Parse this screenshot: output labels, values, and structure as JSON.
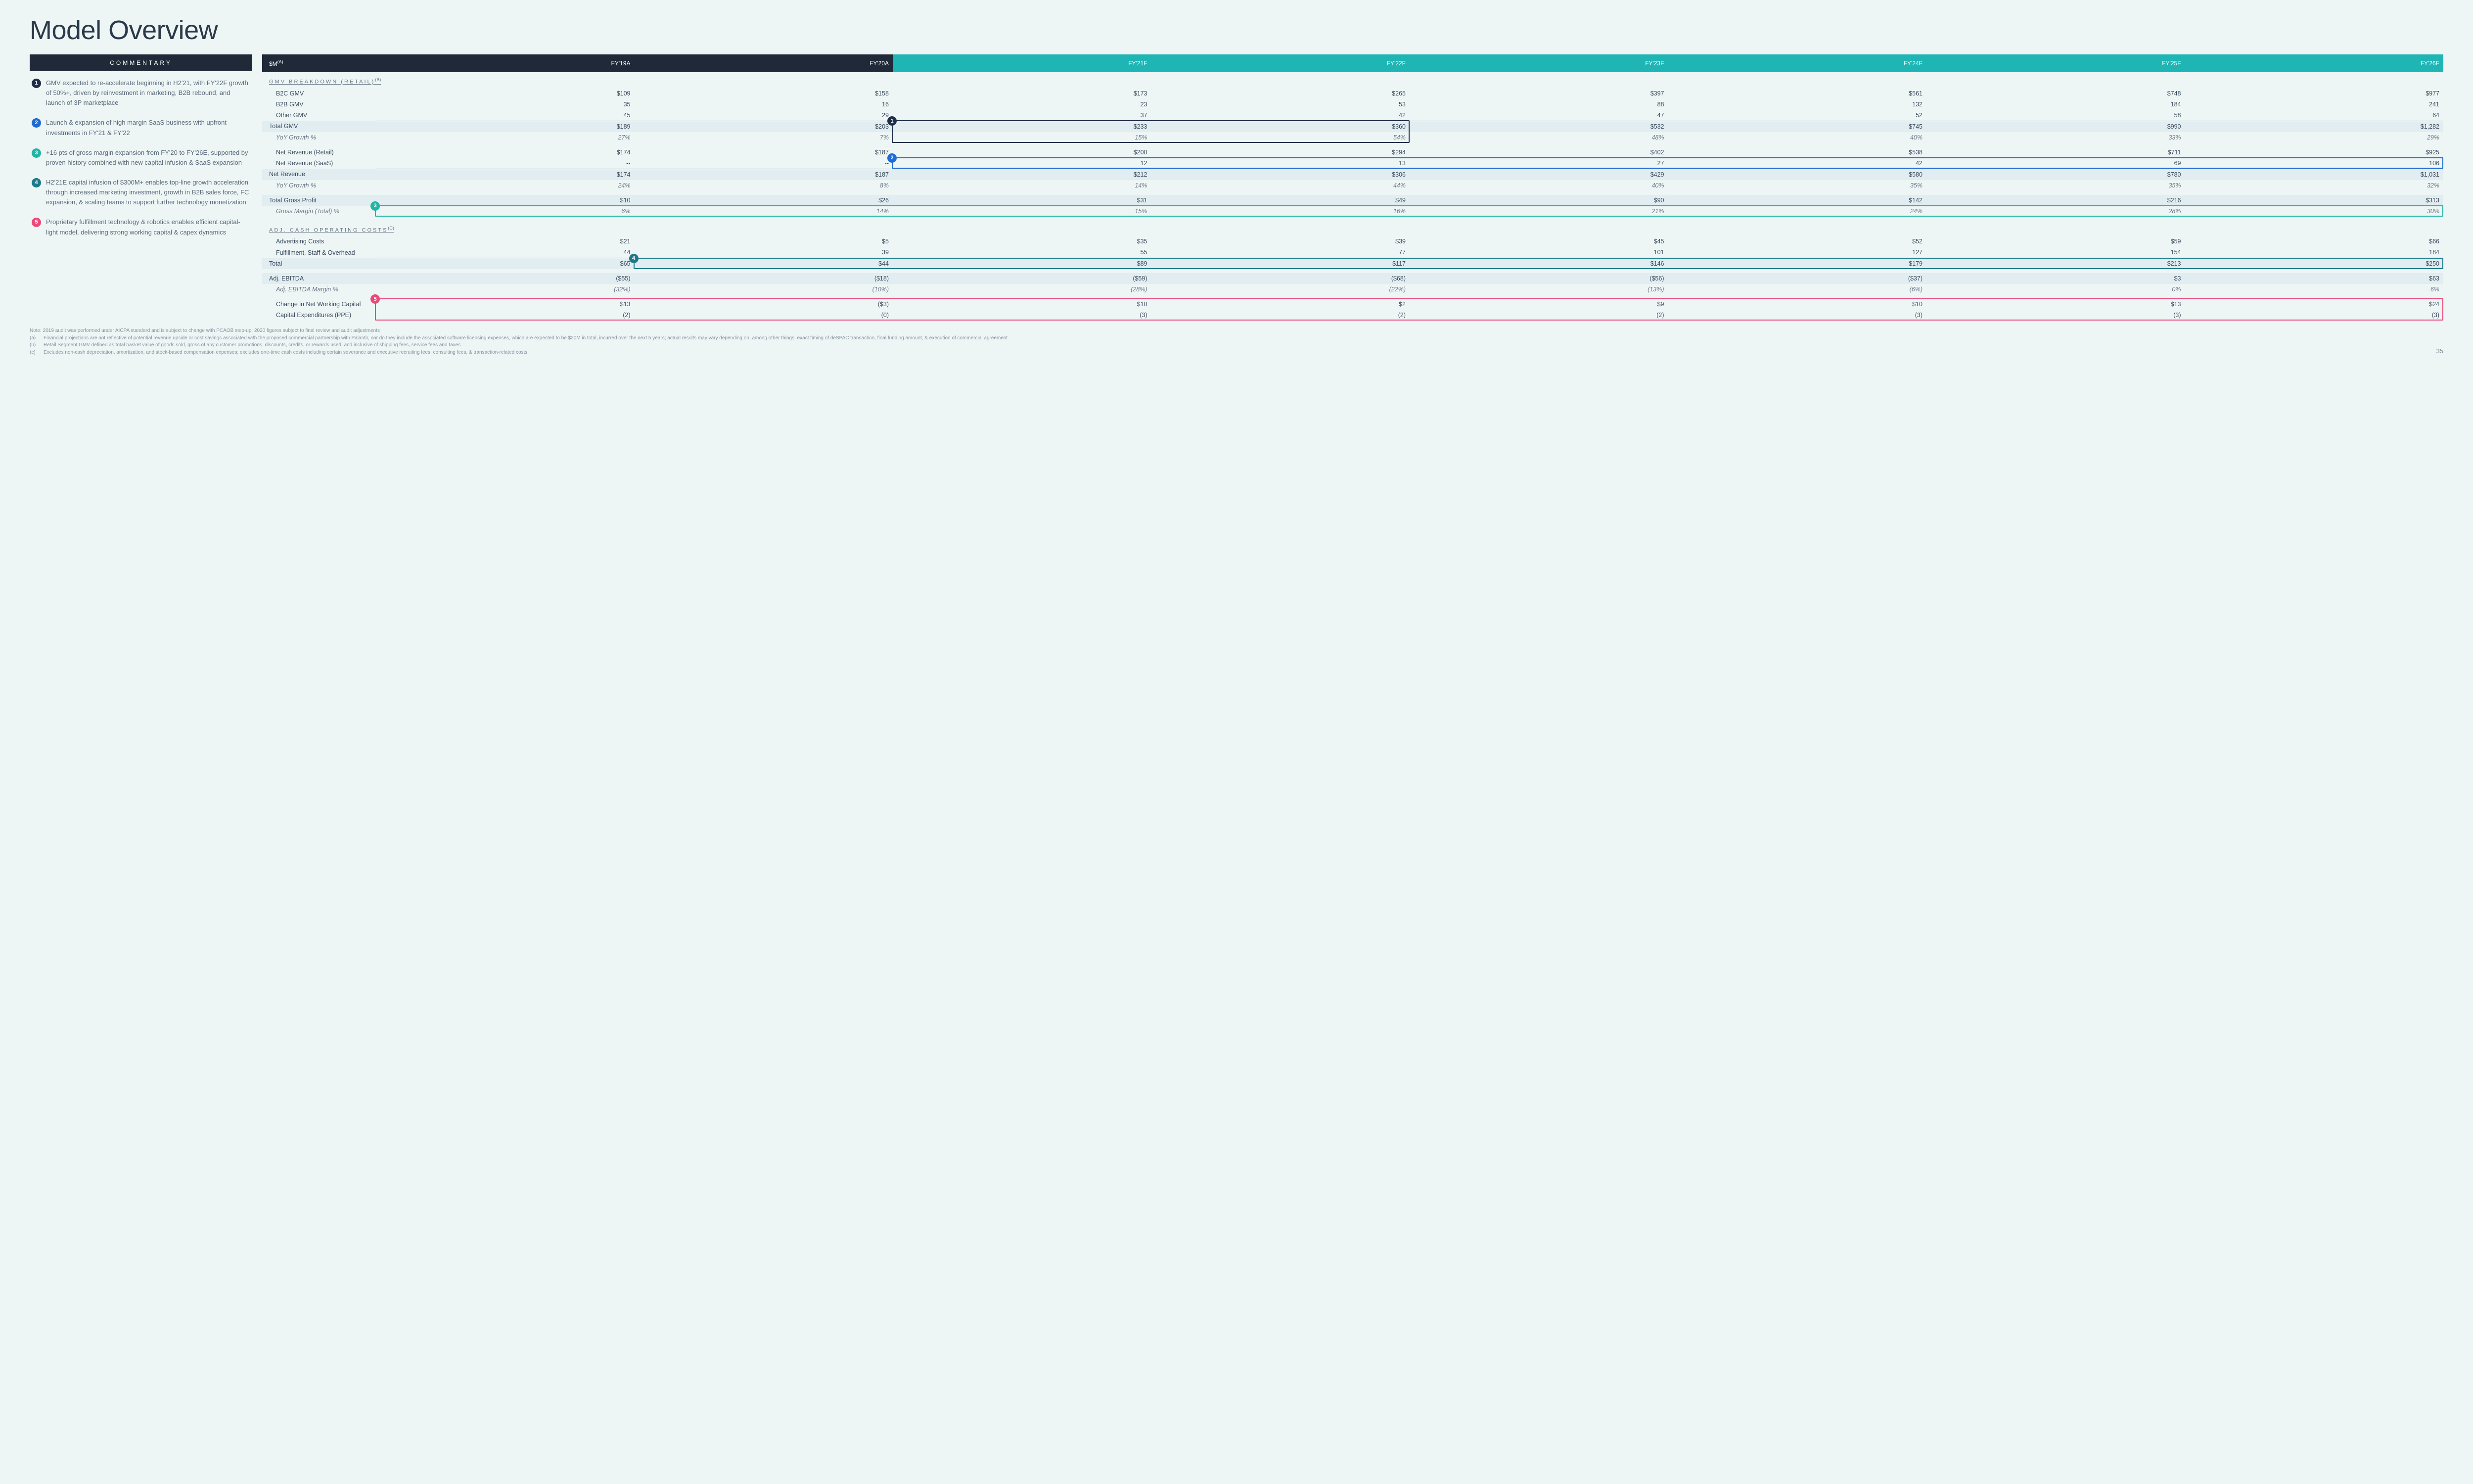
{
  "title": "Model Overview",
  "page_number": "35",
  "colors": {
    "c1": "#1f2d48",
    "c2": "#1e6bd6",
    "c3": "#1fb5a5",
    "c4": "#1c7a8a",
    "c5": "#e84a7a",
    "header_dark": "#1f2937",
    "header_teal": "#1fb5b5"
  },
  "commentary": {
    "header": "COMMENTARY",
    "items": [
      {
        "n": "1",
        "color": "#1f2d48",
        "text": "GMV expected to re-accelerate beginning in H2'21, with FY'22F growth of 50%+, driven by reinvestment in marketing, B2B rebound, and launch of 3P marketplace"
      },
      {
        "n": "2",
        "color": "#1e6bd6",
        "text": "Launch & expansion of high margin SaaS business with upfront investments in FY'21 & FY'22"
      },
      {
        "n": "3",
        "color": "#1fb5a5",
        "text": "+16 pts of gross margin expansion from FY'20 to FY'26E, supported by proven history combined with new capital infusion & SaaS expansion"
      },
      {
        "n": "4",
        "color": "#1c7a8a",
        "text": "H2'21E capital infusion of $300M+ enables top-line growth acceleration through increased marketing investment, growth in B2B sales force, FC expansion, & scaling teams to support further technology monetization"
      },
      {
        "n": "5",
        "color": "#e84a7a",
        "text": "Proprietary fulfillment technology & robotics enables efficient capital-light model, delivering strong working capital & capex dynamics"
      }
    ]
  },
  "table": {
    "unit_header": "$M",
    "unit_sup": "(A)",
    "columns": [
      "FY'19A",
      "FY'20A",
      "FY'21F",
      "FY'22F",
      "FY'23F",
      "FY'24F",
      "FY'25F",
      "FY'26F"
    ],
    "forecast_start_idx": 2,
    "sections": [
      {
        "type": "section",
        "label": "GMV BREAKDOWN (RETAIL)",
        "sup": "(B)"
      },
      {
        "type": "row",
        "label": "B2C GMV",
        "indent": true,
        "cells": [
          "$109",
          "$158",
          "$173",
          "$265",
          "$397",
          "$561",
          "$748",
          "$977"
        ]
      },
      {
        "type": "row",
        "label": "B2B GMV",
        "indent": true,
        "cells": [
          "35",
          "16",
          "23",
          "53",
          "88",
          "132",
          "184",
          "241"
        ]
      },
      {
        "type": "row",
        "label": "Other GMV",
        "indent": true,
        "cells": [
          "45",
          "29",
          "37",
          "42",
          "47",
          "52",
          "58",
          "64"
        ]
      },
      {
        "type": "row",
        "label": "Total GMV",
        "shaded": true,
        "topborder": true,
        "cells": [
          "$189",
          "$203",
          "$233",
          "$360",
          "$532",
          "$745",
          "$990",
          "$1,282"
        ]
      },
      {
        "type": "row",
        "label": "YoY Growth %",
        "indent": true,
        "italic": true,
        "cells": [
          "27%",
          "7%",
          "15%",
          "54%",
          "48%",
          "40%",
          "33%",
          "29%"
        ]
      },
      {
        "type": "spacer"
      },
      {
        "type": "row",
        "label": "Net Revenue (Retail)",
        "indent": true,
        "cells": [
          "$174",
          "$187",
          "$200",
          "$294",
          "$402",
          "$538",
          "$711",
          "$925"
        ]
      },
      {
        "type": "row",
        "label": "Net Revenue (SaaS)",
        "indent": true,
        "cells": [
          "--",
          "--",
          "12",
          "13",
          "27",
          "42",
          "69",
          "106"
        ]
      },
      {
        "type": "row",
        "label": "Net Revenue",
        "shaded": true,
        "topborder": true,
        "cells": [
          "$174",
          "$187",
          "$212",
          "$306",
          "$429",
          "$580",
          "$780",
          "$1,031"
        ]
      },
      {
        "type": "row",
        "label": "YoY Growth %",
        "indent": true,
        "italic": true,
        "cells": [
          "24%",
          "8%",
          "14%",
          "44%",
          "40%",
          "35%",
          "35%",
          "32%"
        ]
      },
      {
        "type": "spacer"
      },
      {
        "type": "row",
        "label": "Total Gross Profit",
        "shaded": true,
        "cells": [
          "$10",
          "$26",
          "$31",
          "$49",
          "$90",
          "$142",
          "$216",
          "$313"
        ]
      },
      {
        "type": "row",
        "label": "Gross Margin (Total) %",
        "indent": true,
        "italic": true,
        "cells": [
          "6%",
          "14%",
          "15%",
          "16%",
          "21%",
          "24%",
          "28%",
          "30%"
        ]
      },
      {
        "type": "spacer"
      },
      {
        "type": "section",
        "label": "ADJ. CASH OPERATING COSTS",
        "sup": "(C)"
      },
      {
        "type": "row",
        "label": "Advertising Costs",
        "indent": true,
        "cells": [
          "$21",
          "$5",
          "$35",
          "$39",
          "$45",
          "$52",
          "$59",
          "$66"
        ]
      },
      {
        "type": "row",
        "label": "Fulfillment, Staff & Overhead",
        "indent": true,
        "cells": [
          "44",
          "39",
          "55",
          "77",
          "101",
          "127",
          "154",
          "184"
        ]
      },
      {
        "type": "row",
        "label": "Total",
        "shaded": true,
        "topborder": true,
        "cells": [
          "$65",
          "$44",
          "$89",
          "$117",
          "$146",
          "$179",
          "$213",
          "$250"
        ]
      },
      {
        "type": "spacer"
      },
      {
        "type": "row",
        "label": "Adj. EBITDA",
        "shaded": true,
        "cells": [
          "($55)",
          "($18)",
          "($59)",
          "($68)",
          "($56)",
          "($37)",
          "$3",
          "$63"
        ]
      },
      {
        "type": "row",
        "label": "Adj. EBITDA Margin %",
        "indent": true,
        "italic": true,
        "cells": [
          "(32%)",
          "(10%)",
          "(28%)",
          "(22%)",
          "(13%)",
          "(6%)",
          "0%",
          "6%"
        ]
      },
      {
        "type": "spacer"
      },
      {
        "type": "row",
        "label": "Change in Net Working Capital",
        "indent": true,
        "cells": [
          "$13",
          "($3)",
          "$10",
          "$2",
          "$9",
          "$10",
          "$13",
          "$24"
        ]
      },
      {
        "type": "row",
        "label": "Capital Expenditures (PPE)",
        "indent": true,
        "cells": [
          "(2)",
          "(0)",
          "(3)",
          "(2)",
          "(2)",
          "(3)",
          "(3)",
          "(3)"
        ]
      }
    ]
  },
  "overlays": [
    {
      "n": "1",
      "color": "#1f2d48",
      "row_from": 4,
      "row_to": 5,
      "col_from": 2,
      "col_to": 3
    },
    {
      "n": "2",
      "color": "#1e6bd6",
      "row_from": 8,
      "row_to": 8,
      "col_from": 2,
      "col_to": 7
    },
    {
      "n": "3",
      "color": "#1fb5a5",
      "row_from": 13,
      "row_to": 13,
      "col_from": 0,
      "col_to": 7
    },
    {
      "n": "4",
      "color": "#1c7a8a",
      "row_from": 18,
      "row_to": 18,
      "col_from": 1,
      "col_to": 7
    },
    {
      "n": "5",
      "color": "#e84a7a",
      "row_from": 23,
      "row_to": 24,
      "col_from": 0,
      "col_to": 7
    }
  ],
  "footnotes": {
    "note": "Note: 2019 audit was performed under AICPA standard and is subject to change with PCAOB step-up; 2020 figures subject to final review and audit adjustments",
    "items": [
      {
        "tag": "(a)",
        "text": "Financial projections are not reflective of potential revenue upside or cost savings associated with the proposed commercial partnership with Palantir, nor do they include the associated software licensing expenses, which are expected to be $20M in total, incurred over the next 5 years; actual results may vary depending on, among other things, exact timing of deSPAC transaction, final funding amount, & execution of commercial agreement"
      },
      {
        "tag": "(b)",
        "text": "Retail Segment GMV defined as total basket value of goods sold, gross of any customer promotions, discounts, credits, or rewards used, and inclusive of shipping fees, service fees and taxes"
      },
      {
        "tag": "(c)",
        "text": "Excludes non-cash depreciation, amortization, and stock-based compensation expenses; excludes one-time cash costs including certain severance and executive recruiting fees, consulting fees, & transaction-related costs"
      }
    ]
  }
}
